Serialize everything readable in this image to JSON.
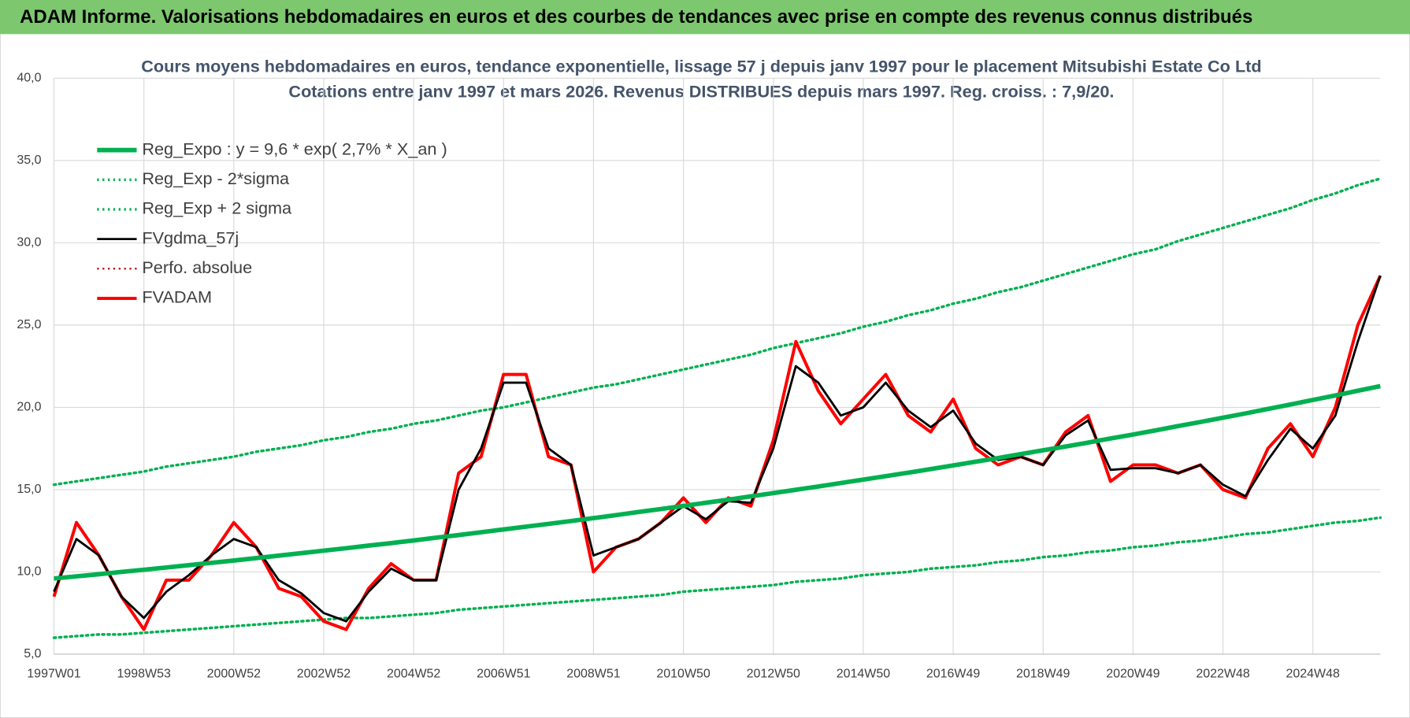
{
  "header": {
    "title": "ADAM Informe. Valorisations hebdomadaires en euros et des courbes de tendances avec prise en compte des revenus connus distribués"
  },
  "chart_data": {
    "type": "line",
    "title": "Cours moyens hebdomadaires en euros, tendance exponentielle, lissage 57 j depuis janv 1997 pour le placement Mitsubishi Estate Co Ltd",
    "subtitle": "Cotations entre janv 1997 et mars 2026. Revenus DISTRIBUES depuis mars 1997. Reg. croiss. : 7,9/20.",
    "categories": [
      "1997W01",
      null,
      null,
      null,
      "1998W53",
      null,
      null,
      null,
      "2000W52",
      null,
      null,
      null,
      "2002W52",
      null,
      null,
      null,
      "2004W52",
      null,
      null,
      null,
      "2006W51",
      null,
      null,
      null,
      "2008W51",
      null,
      null,
      null,
      "2010W50",
      null,
      null,
      null,
      "2012W50",
      null,
      null,
      null,
      "2014W50",
      null,
      null,
      null,
      "2016W49",
      null,
      null,
      null,
      "2018W49",
      null,
      null,
      null,
      "2020W49",
      null,
      null,
      null,
      "2022W48",
      null,
      null,
      null,
      "2024W48",
      null,
      null,
      null
    ],
    "ylim": [
      5,
      40
    ],
    "yticks": [
      {
        "value": 5,
        "label": "5,0"
      },
      {
        "value": 10,
        "label": "10,0"
      },
      {
        "value": 15,
        "label": "15,0"
      },
      {
        "value": 20,
        "label": "20,0"
      },
      {
        "value": 25,
        "label": "25,0"
      },
      {
        "value": 30,
        "label": "30,0"
      },
      {
        "value": 35,
        "label": "35,0"
      },
      {
        "value": 40,
        "label": "40,0"
      }
    ],
    "grid": true,
    "legend": "upper left",
    "series": [
      {
        "name": "Reg_Expo : y = 9,6 * exp( 2,7% *  X_an )",
        "color": "#00b050",
        "style": "solid",
        "width": 5,
        "values": [
          9.6,
          9.73,
          9.86,
          10.0,
          10.13,
          10.27,
          10.41,
          10.55,
          10.69,
          10.84,
          10.99,
          11.14,
          11.29,
          11.44,
          11.6,
          11.75,
          11.91,
          12.08,
          12.24,
          12.41,
          12.58,
          12.75,
          12.92,
          13.09,
          13.27,
          13.45,
          13.64,
          13.82,
          14.01,
          14.2,
          14.39,
          14.59,
          14.79,
          14.99,
          15.19,
          15.4,
          15.61,
          15.82,
          16.03,
          16.25,
          16.47,
          16.7,
          16.92,
          17.16,
          17.39,
          17.62,
          17.86,
          18.11,
          18.35,
          18.6,
          18.86,
          19.11,
          19.37,
          19.63,
          19.9,
          20.17,
          20.45,
          20.72,
          21.01,
          21.29
        ]
      },
      {
        "name": "Reg_Exp - 2*sigma",
        "color": "#00b050",
        "style": "dotted",
        "width": 3,
        "values": [
          6.0,
          6.1,
          6.2,
          6.2,
          6.3,
          6.4,
          6.5,
          6.6,
          6.7,
          6.8,
          6.9,
          7.0,
          7.1,
          7.2,
          7.2,
          7.3,
          7.4,
          7.5,
          7.7,
          7.8,
          7.9,
          8.0,
          8.1,
          8.2,
          8.3,
          8.4,
          8.5,
          8.6,
          8.8,
          8.9,
          9.0,
          9.1,
          9.2,
          9.4,
          9.5,
          9.6,
          9.8,
          9.9,
          10.0,
          10.2,
          10.3,
          10.4,
          10.6,
          10.7,
          10.9,
          11.0,
          11.2,
          11.3,
          11.5,
          11.6,
          11.8,
          11.9,
          12.1,
          12.3,
          12.4,
          12.6,
          12.8,
          13.0,
          13.1,
          13.3
        ]
      },
      {
        "name": "Reg_Exp + 2 sigma",
        "color": "#00b050",
        "style": "dotted",
        "width": 3,
        "values": [
          15.3,
          15.5,
          15.7,
          15.9,
          16.1,
          16.4,
          16.6,
          16.8,
          17.0,
          17.3,
          17.5,
          17.7,
          18.0,
          18.2,
          18.5,
          18.7,
          19.0,
          19.2,
          19.5,
          19.8,
          20.0,
          20.3,
          20.6,
          20.9,
          21.2,
          21.4,
          21.7,
          22.0,
          22.3,
          22.6,
          22.9,
          23.2,
          23.6,
          23.9,
          24.2,
          24.5,
          24.9,
          25.2,
          25.6,
          25.9,
          26.3,
          26.6,
          27.0,
          27.3,
          27.7,
          28.1,
          28.5,
          28.9,
          29.3,
          29.6,
          30.1,
          30.5,
          30.9,
          31.3,
          31.7,
          32.1,
          32.6,
          33.0,
          33.5,
          33.9
        ]
      },
      {
        "name": "FVgdma_57j",
        "color": "#000000",
        "style": "solid",
        "width": 2.5,
        "values": [
          8.8,
          12.0,
          11.0,
          8.5,
          7.2,
          8.8,
          9.8,
          11.0,
          12.0,
          11.5,
          9.5,
          8.7,
          7.5,
          7.0,
          8.8,
          10.2,
          9.5,
          9.5,
          15.0,
          17.5,
          21.5,
          21.5,
          17.5,
          16.5,
          11.0,
          11.5,
          12.0,
          13.0,
          14.0,
          13.2,
          14.3,
          14.2,
          17.5,
          22.5,
          21.5,
          19.5,
          20.0,
          21.5,
          19.8,
          18.8,
          19.8,
          17.8,
          16.8,
          17.0,
          16.5,
          18.3,
          19.2,
          16.2,
          16.3,
          16.3,
          16.0,
          16.5,
          15.3,
          14.6,
          16.8,
          18.7,
          17.5,
          19.5,
          24.0,
          28.0
        ]
      },
      {
        "name": "Perfo. absolue",
        "color": "#c00000",
        "style": "dotted",
        "width": 2,
        "values": [
          null,
          null,
          null,
          null,
          null,
          null,
          null,
          null,
          null,
          null,
          null,
          null,
          null,
          null,
          null,
          null,
          null,
          null,
          null,
          null,
          null,
          null,
          null,
          null,
          null,
          null,
          null,
          null,
          null,
          null,
          null,
          null,
          null,
          null,
          null,
          null,
          null,
          null,
          null,
          null,
          null,
          null,
          null,
          null,
          null,
          null,
          null,
          null,
          null,
          null,
          null,
          null,
          null,
          null,
          null,
          null,
          null,
          null,
          null,
          null
        ]
      },
      {
        "name": "FVADAM",
        "color": "#ff0000",
        "style": "solid",
        "width": 3.5,
        "values": [
          8.5,
          13.0,
          11.0,
          8.5,
          6.5,
          9.5,
          9.5,
          11.0,
          13.0,
          11.5,
          9.0,
          8.5,
          7.0,
          6.5,
          9.0,
          10.5,
          9.5,
          9.5,
          16.0,
          17.0,
          22.0,
          22.0,
          17.0,
          16.5,
          10.0,
          11.5,
          12.0,
          13.0,
          14.5,
          13.0,
          14.5,
          14.0,
          18.0,
          24.0,
          21.0,
          19.0,
          20.5,
          22.0,
          19.5,
          18.5,
          20.5,
          17.5,
          16.5,
          17.0,
          16.5,
          18.5,
          19.5,
          15.5,
          16.5,
          16.5,
          16.0,
          16.5,
          15.0,
          14.5,
          17.5,
          19.0,
          17.0,
          20.0,
          25.0,
          28.0
        ]
      }
    ]
  }
}
